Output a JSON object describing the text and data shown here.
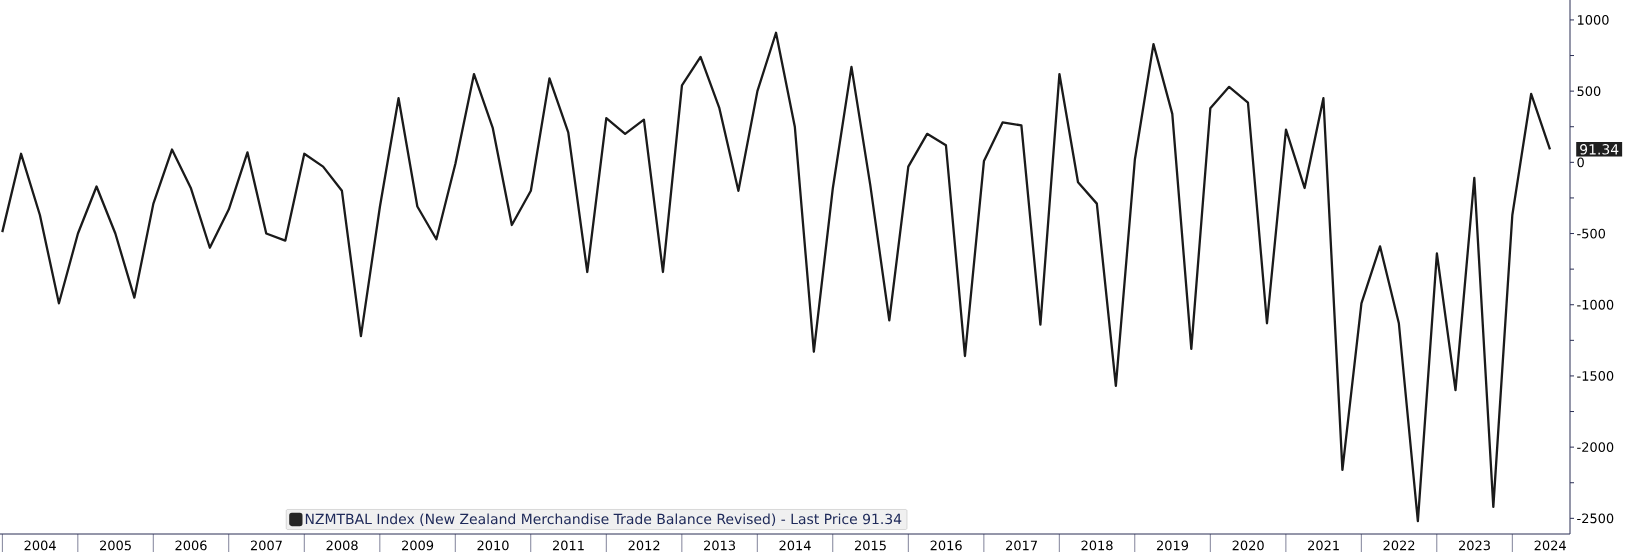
{
  "chart_data": {
    "type": "line",
    "x": [
      "2003-12-31",
      "2004-03-31",
      "2004-06-30",
      "2004-09-30",
      "2004-12-31",
      "2005-03-31",
      "2005-06-30",
      "2005-09-30",
      "2005-12-31",
      "2006-03-31",
      "2006-06-30",
      "2006-09-30",
      "2006-12-31",
      "2007-03-31",
      "2007-06-30",
      "2007-09-30",
      "2007-12-31",
      "2008-03-31",
      "2008-06-30",
      "2008-09-30",
      "2008-12-31",
      "2009-03-31",
      "2009-06-30",
      "2009-09-30",
      "2009-12-31",
      "2010-03-31",
      "2010-06-30",
      "2010-09-30",
      "2010-12-31",
      "2011-03-31",
      "2011-06-30",
      "2011-09-30",
      "2011-12-31",
      "2012-03-31",
      "2012-06-30",
      "2012-09-30",
      "2012-12-31",
      "2013-03-31",
      "2013-06-30",
      "2013-09-30",
      "2013-12-31",
      "2014-03-31",
      "2014-06-30",
      "2014-09-30",
      "2014-12-31",
      "2015-03-31",
      "2015-06-30",
      "2015-09-30",
      "2015-12-31",
      "2016-03-31",
      "2016-06-30",
      "2016-09-30",
      "2016-12-31",
      "2017-03-31",
      "2017-06-30",
      "2017-09-30",
      "2017-12-31",
      "2018-03-31",
      "2018-06-30",
      "2018-09-30",
      "2018-12-31",
      "2019-03-31",
      "2019-06-30",
      "2019-09-30",
      "2019-12-31",
      "2020-03-31",
      "2020-06-30",
      "2020-09-30",
      "2020-12-31",
      "2021-03-31",
      "2021-06-30",
      "2021-09-30",
      "2021-12-31",
      "2022-03-31",
      "2022-06-30",
      "2022-09-30",
      "2022-12-31",
      "2023-03-31",
      "2023-06-30",
      "2023-09-30",
      "2023-12-31",
      "2024-03-31",
      "2024-06-30"
    ],
    "series": [
      {
        "name": "NZMTBAL Index (New Zealand Merchandise Trade Balance Revised) - Last Price 91.34",
        "color": "#1a1a1a",
        "values": [
          -490,
          60,
          -370,
          -990,
          -500,
          -170,
          -500,
          -950,
          -290,
          90,
          -180,
          -600,
          -330,
          70,
          -500,
          -550,
          60,
          -30,
          -200,
          -1220,
          -310,
          450,
          -310,
          -540,
          -10,
          620,
          240,
          -440,
          -200,
          590,
          210,
          -770,
          310,
          200,
          300,
          -770,
          540,
          740,
          380,
          -200,
          500,
          910,
          250,
          -1330,
          -180,
          670,
          -160,
          -1110,
          -30,
          200,
          120,
          -1360,
          10,
          280,
          260,
          -1140,
          620,
          -140,
          -290,
          -1570,
          20,
          830,
          340,
          -1310,
          380,
          530,
          420,
          -1130,
          230,
          -180,
          450,
          -2160,
          -990,
          -590,
          -1130,
          -2520,
          -640,
          -1600,
          -110,
          -2420,
          -370,
          480,
          91.34
        ]
      }
    ],
    "xlim": [
      "2003-12-20",
      "2024-10-05"
    ],
    "xticks": [
      {
        "value": "2004-07-01",
        "label": "2004"
      },
      {
        "value": "2005-07-01",
        "label": "2005"
      },
      {
        "value": "2006-07-01",
        "label": "2006"
      },
      {
        "value": "2007-07-01",
        "label": "2007"
      },
      {
        "value": "2008-07-01",
        "label": "2008"
      },
      {
        "value": "2009-07-01",
        "label": "2009"
      },
      {
        "value": "2010-07-01",
        "label": "2010"
      },
      {
        "value": "2011-07-01",
        "label": "2011"
      },
      {
        "value": "2012-07-01",
        "label": "2012"
      },
      {
        "value": "2013-07-01",
        "label": "2013"
      },
      {
        "value": "2014-07-01",
        "label": "2014"
      },
      {
        "value": "2015-07-01",
        "label": "2015"
      },
      {
        "value": "2016-07-01",
        "label": "2016"
      },
      {
        "value": "2017-07-01",
        "label": "2017"
      },
      {
        "value": "2018-07-01",
        "label": "2018"
      },
      {
        "value": "2019-07-01",
        "label": "2019"
      },
      {
        "value": "2020-07-01",
        "label": "2020"
      },
      {
        "value": "2021-07-01",
        "label": "2021"
      },
      {
        "value": "2022-07-01",
        "label": "2022"
      },
      {
        "value": "2023-07-01",
        "label": "2023"
      },
      {
        "value": "2024-07-01",
        "label": "2024"
      }
    ],
    "ylim": [
      -2610,
      1140
    ],
    "yticks": [
      -2500,
      {
        "value": -2250,
        "label": null
      },
      -2000,
      {
        "value": -1750,
        "label": null
      },
      -1500,
      {
        "value": -1250,
        "label": null
      },
      -1000,
      {
        "value": -750,
        "label": null
      },
      -500,
      {
        "value": -250,
        "label": null
      },
      0,
      {
        "value": 250,
        "label": null
      },
      500,
      {
        "value": 750,
        "label": null
      },
      1000
    ],
    "annotations": [
      {
        "text": "91.34",
        "x": "2024-06-30",
        "y": 91.34
      }
    ],
    "legend": "bottom",
    "grid": false,
    "marker": "none",
    "line_style": "solid"
  }
}
